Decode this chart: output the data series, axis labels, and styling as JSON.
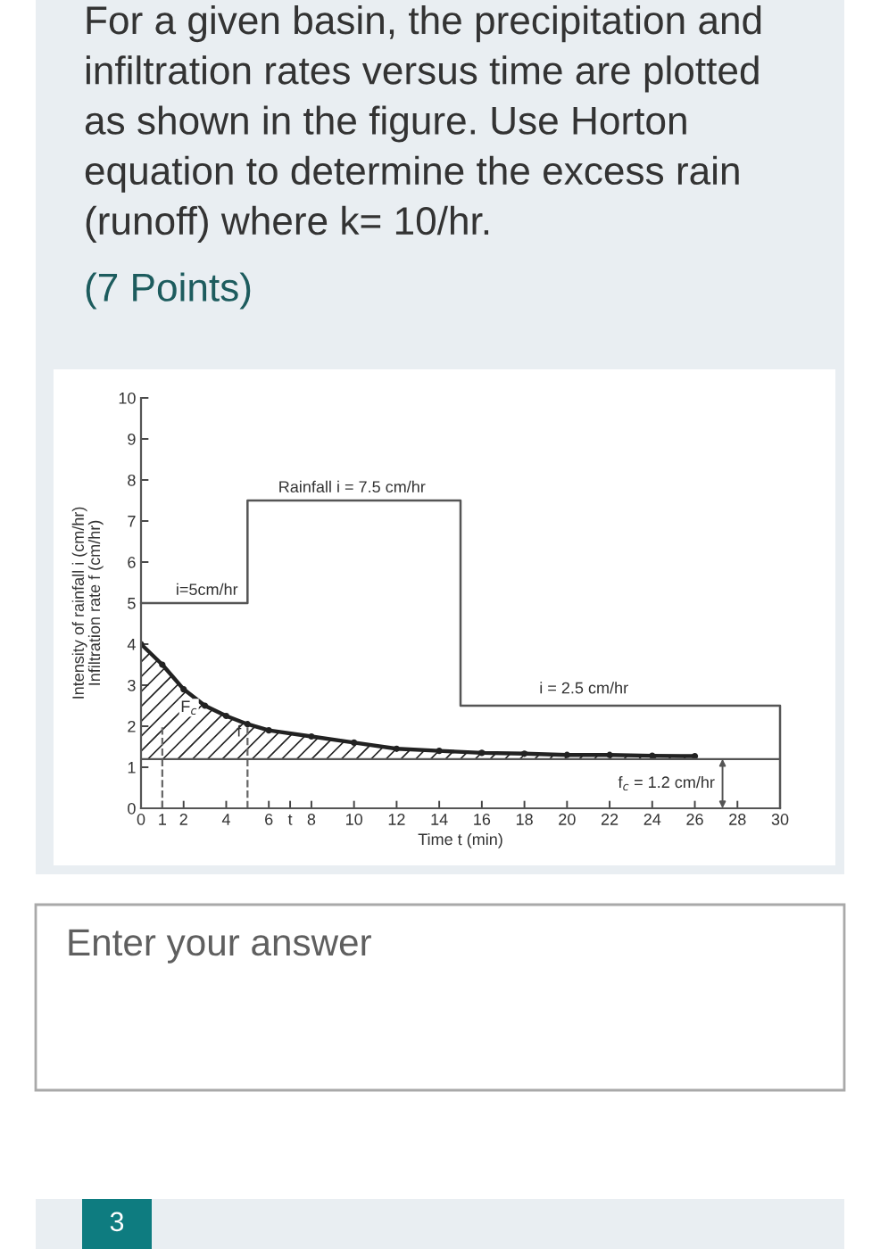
{
  "chart_data": {
    "type": "line",
    "title": "For a given basin, the precipitation and infiltration rates versus time are plotted as shown in the figure. Use Horton equation to determine the excess rain (runoff) where k= 10/hr.",
    "subtitle": "(7 Points)",
    "xlabel": "Time t (min)",
    "ylabel": "Intensity of rainfall i (cm/hr)\nInfiltration rate f (cm/hr)",
    "xlim": [
      0,
      30
    ],
    "xticks": [
      0,
      1,
      2,
      4,
      6,
      {
        "value": 7,
        "label": "t"
      },
      8,
      10,
      12,
      14,
      16,
      18,
      20,
      22,
      24,
      26,
      28,
      30
    ],
    "ylim": [
      0,
      10
    ],
    "yticks": [
      0,
      1,
      2,
      3,
      4,
      5,
      6,
      7,
      8,
      9,
      10
    ],
    "grid": false,
    "series": [
      {
        "type": "step",
        "color": "#555555",
        "x": [
          0,
          5,
          15,
          30,
          30
        ],
        "values": [
          5,
          7.5,
          2.5,
          2.5,
          0
        ]
      },
      {
        "color": "#222222",
        "marker": "circle",
        "x": [
          0,
          1,
          2,
          3,
          4,
          5,
          6,
          8,
          10,
          12,
          14,
          16,
          18,
          20,
          22,
          24,
          26
        ],
        "values": [
          4.0,
          3.5,
          2.9,
          2.5,
          2.25,
          2.05,
          1.9,
          1.75,
          1.6,
          1.45,
          1.4,
          1.35,
          1.33,
          1.3,
          1.3,
          1.28,
          1.27
        ],
        "lower": [
          1.2,
          1.2,
          1.2,
          1.2,
          1.2,
          1.2,
          1.2,
          1.2,
          1.2,
          1.2,
          1.2,
          1.2,
          1.2,
          1.2,
          1.2,
          1.2,
          1.2
        ],
        "upper": [
          4.0,
          3.5,
          2.9,
          2.5,
          2.25,
          2.05,
          1.9,
          1.75,
          1.6,
          1.45,
          1.4,
          1.35,
          1.33,
          1.3,
          1.3,
          1.28,
          1.27
        ]
      },
      {
        "color": "#666666",
        "line_style": "dashed",
        "x": [
          1,
          1
        ],
        "values": [
          0,
          2
        ]
      },
      {
        "color": "#666666",
        "line_style": "dashed",
        "x": [
          5,
          5
        ],
        "values": [
          0,
          2
        ]
      }
    ],
    "ref_lines": [
      {
        "axis": "y",
        "value": 1.2,
        "label": "f$_{c}$ = 1.2 cm/hr",
        "color": "#555555"
      }
    ],
    "annotations": [
      "Rainfall i = 7.5 cm/hr",
      "i=5cm/hr",
      "i = 2.5 cm/hr",
      "F$_{c}$",
      {
        "text": "f",
        "x": 4.6,
        "y": 1.85
      },
      "Enter your answer",
      "3"
    ]
  }
}
